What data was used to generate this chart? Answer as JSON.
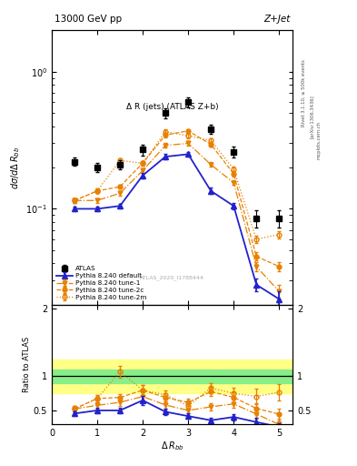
{
  "title_top": "13000 GeV pp",
  "title_right": "Z+Jet",
  "plot_title": "Δ R (jets) (ATLAS Z+b)",
  "watermark": "ATLAS_2020_I1788444",
  "right_label1": "Rivet 3.1.10, ≥ 500k events",
  "right_label2": "[arXiv:1306.3436]",
  "right_label3": "mcplots.cern.ch",
  "xlabel": "Δ R_{bb}",
  "ylabel_main": "dσ/dΔ R_{bb}",
  "ylabel_ratio": "Ratio to ATLAS",
  "x_values": [
    0.5,
    1.0,
    1.5,
    2.0,
    2.5,
    3.0,
    3.5,
    4.0,
    4.5,
    5.0
  ],
  "atlas_y": [
    0.22,
    0.2,
    0.21,
    0.27,
    0.5,
    0.6,
    0.38,
    0.26,
    0.085,
    0.085
  ],
  "atlas_yerr": [
    0.015,
    0.015,
    0.015,
    0.025,
    0.04,
    0.05,
    0.03,
    0.025,
    0.012,
    0.012
  ],
  "pythia_default_y": [
    0.1,
    0.1,
    0.105,
    0.175,
    0.24,
    0.25,
    0.135,
    0.105,
    0.028,
    0.022
  ],
  "pythia_default_yerr": [
    0.004,
    0.004,
    0.004,
    0.008,
    0.01,
    0.01,
    0.007,
    0.006,
    0.003,
    0.003
  ],
  "pythia_tune1_y": [
    0.115,
    0.115,
    0.13,
    0.19,
    0.29,
    0.3,
    0.21,
    0.155,
    0.038,
    0.025
  ],
  "pythia_tune1_yerr": [
    0.004,
    0.004,
    0.005,
    0.008,
    0.011,
    0.011,
    0.008,
    0.006,
    0.003,
    0.003
  ],
  "pythia_tune2c_y": [
    0.115,
    0.135,
    0.145,
    0.215,
    0.345,
    0.37,
    0.295,
    0.18,
    0.045,
    0.038
  ],
  "pythia_tune2c_yerr": [
    0.004,
    0.005,
    0.005,
    0.008,
    0.012,
    0.012,
    0.01,
    0.007,
    0.003,
    0.003
  ],
  "pythia_tune2m_y": [
    0.115,
    0.135,
    0.225,
    0.215,
    0.365,
    0.34,
    0.315,
    0.195,
    0.06,
    0.065
  ],
  "pythia_tune2m_yerr": [
    0.004,
    0.005,
    0.008,
    0.008,
    0.013,
    0.012,
    0.01,
    0.007,
    0.004,
    0.004
  ],
  "color_blue": "#2222cc",
  "color_orange": "#e88000",
  "green_band_lo": 0.9,
  "green_band_hi": 1.1,
  "yellow_band_lo": 0.75,
  "yellow_band_hi": 1.25,
  "ylim_main": [
    0.02,
    2.0
  ],
  "ylim_ratio": [
    0.3,
    2.05
  ],
  "xlim": [
    0.0,
    5.3
  ]
}
